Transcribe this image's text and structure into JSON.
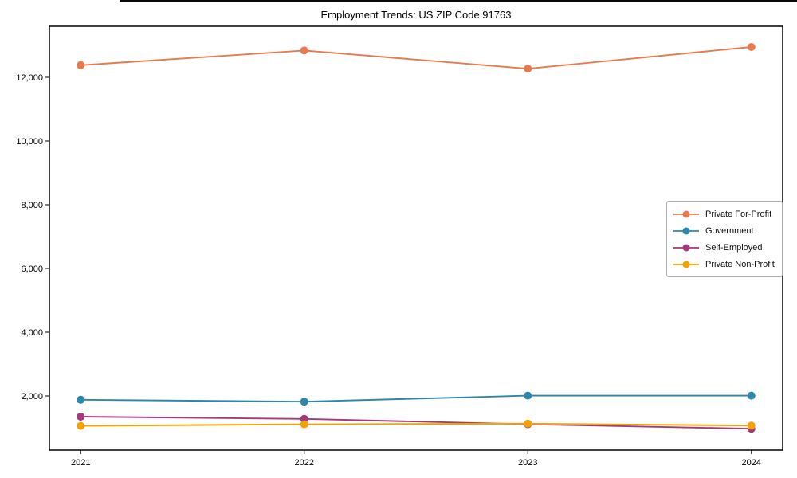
{
  "chart_data": {
    "type": "line",
    "title": "Employment Trends: US ZIP Code 91763",
    "xlabel": "",
    "ylabel": "",
    "x": [
      2021,
      2022,
      2023,
      2024
    ],
    "x_tick_labels": [
      "2021",
      "2022",
      "2023",
      "2024"
    ],
    "series": [
      {
        "name": "Private For-Profit",
        "color": "#E87A4E",
        "values": [
          12380,
          12840,
          12270,
          12950
        ]
      },
      {
        "name": "Government",
        "color": "#2E86AB",
        "values": [
          1880,
          1820,
          2010,
          2010
        ]
      },
      {
        "name": "Self-Employed",
        "color": "#A5397E",
        "values": [
          1350,
          1280,
          1110,
          970
        ]
      },
      {
        "name": "Private Non-Profit",
        "color": "#F3A202",
        "values": [
          1060,
          1110,
          1130,
          1070
        ]
      }
    ],
    "yticks": [
      2000,
      4000,
      6000,
      8000,
      10000,
      12000
    ],
    "ytick_labels": [
      "2,000",
      "4,000",
      "6,000",
      "8,000",
      "10,000",
      "12,000"
    ],
    "ylim": [
      300,
      13600
    ],
    "xlim": [
      2020.86,
      2024.14
    ],
    "grid": false,
    "legend_position": "center-right",
    "axis_color": "#000000",
    "marker": "circle"
  }
}
